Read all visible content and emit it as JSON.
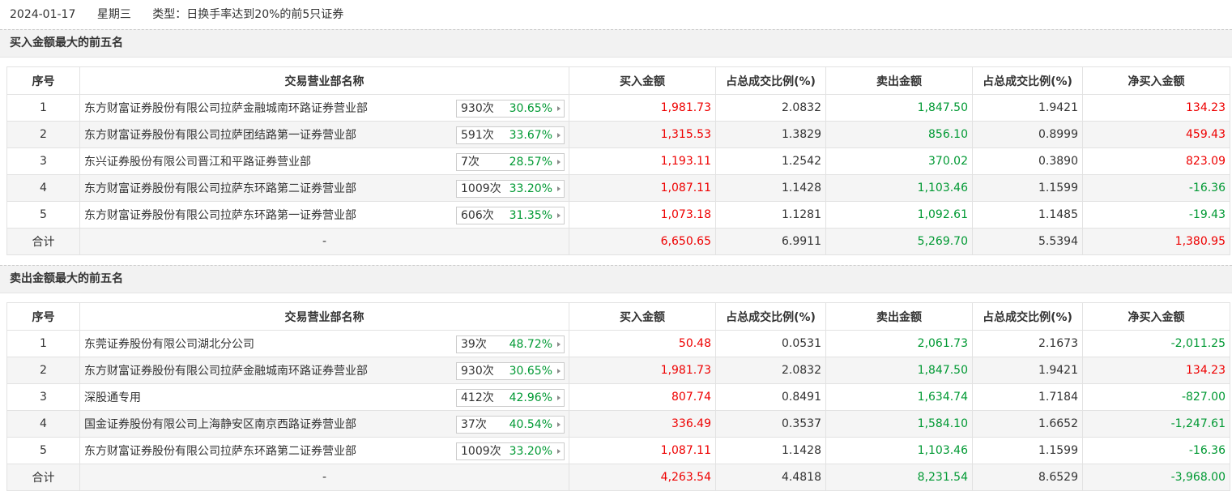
{
  "header": {
    "date": "2024-01-17",
    "weekday": "星期三",
    "type": "类型：日换手率达到20%的前5只证券"
  },
  "sections": [
    {
      "title": "买入金额最大的前五名",
      "columns": [
        "序号",
        "交易营业部名称",
        "买入金额",
        "占总成交比例(%)",
        "卖出金额",
        "占总成交比例(%)",
        "净买入金额"
      ],
      "rows": [
        {
          "rank": "1",
          "name": "东方财富证券股份有限公司拉萨金融城南环路证券营业部",
          "count": "930次",
          "ratio": "30.65%",
          "buy": "1,981.73",
          "buy_pct": "2.0832",
          "sell": "1,847.50",
          "sell_pct": "1.9421",
          "net": "134.23"
        },
        {
          "rank": "2",
          "name": "东方财富证券股份有限公司拉萨团结路第一证券营业部",
          "count": "591次",
          "ratio": "33.67%",
          "buy": "1,315.53",
          "buy_pct": "1.3829",
          "sell": "856.10",
          "sell_pct": "0.8999",
          "net": "459.43"
        },
        {
          "rank": "3",
          "name": "东兴证券股份有限公司晋江和平路证券营业部",
          "count": "7次",
          "ratio": "28.57%",
          "buy": "1,193.11",
          "buy_pct": "1.2542",
          "sell": "370.02",
          "sell_pct": "0.3890",
          "net": "823.09"
        },
        {
          "rank": "4",
          "name": "东方财富证券股份有限公司拉萨东环路第二证券营业部",
          "count": "1009次",
          "ratio": "33.20%",
          "buy": "1,087.11",
          "buy_pct": "1.1428",
          "sell": "1,103.46",
          "sell_pct": "1.1599",
          "net": "-16.36"
        },
        {
          "rank": "5",
          "name": "东方财富证券股份有限公司拉萨东环路第一证券营业部",
          "count": "606次",
          "ratio": "31.35%",
          "buy": "1,073.18",
          "buy_pct": "1.1281",
          "sell": "1,092.61",
          "sell_pct": "1.1485",
          "net": "-19.43"
        }
      ],
      "total": {
        "label": "合计",
        "name": "-",
        "buy": "6,650.65",
        "buy_pct": "6.9911",
        "sell": "5,269.70",
        "sell_pct": "5.5394",
        "net": "1,380.95"
      }
    },
    {
      "title": "卖出金额最大的前五名",
      "columns": [
        "序号",
        "交易营业部名称",
        "买入金额",
        "占总成交比例(%)",
        "卖出金额",
        "占总成交比例(%)",
        "净买入金额"
      ],
      "rows": [
        {
          "rank": "1",
          "name": "东莞证券股份有限公司湖北分公司",
          "count": "39次",
          "ratio": "48.72%",
          "buy": "50.48",
          "buy_pct": "0.0531",
          "sell": "2,061.73",
          "sell_pct": "2.1673",
          "net": "-2,011.25"
        },
        {
          "rank": "2",
          "name": "东方财富证券股份有限公司拉萨金融城南环路证券营业部",
          "count": "930次",
          "ratio": "30.65%",
          "buy": "1,981.73",
          "buy_pct": "2.0832",
          "sell": "1,847.50",
          "sell_pct": "1.9421",
          "net": "134.23"
        },
        {
          "rank": "3",
          "name": "深股通专用",
          "count": "412次",
          "ratio": "42.96%",
          "buy": "807.74",
          "buy_pct": "0.8491",
          "sell": "1,634.74",
          "sell_pct": "1.7184",
          "net": "-827.00"
        },
        {
          "rank": "4",
          "name": "国金证券股份有限公司上海静安区南京西路证券营业部",
          "count": "37次",
          "ratio": "40.54%",
          "buy": "336.49",
          "buy_pct": "0.3537",
          "sell": "1,584.10",
          "sell_pct": "1.6652",
          "net": "-1,247.61"
        },
        {
          "rank": "5",
          "name": "东方财富证券股份有限公司拉萨东环路第二证券营业部",
          "count": "1009次",
          "ratio": "33.20%",
          "buy": "1,087.11",
          "buy_pct": "1.1428",
          "sell": "1,103.46",
          "sell_pct": "1.1599",
          "net": "-16.36"
        }
      ],
      "total": {
        "label": "合计",
        "name": "-",
        "buy": "4,263.54",
        "buy_pct": "4.4818",
        "sell": "8,231.54",
        "sell_pct": "8.6529",
        "net": "-3,968.00"
      }
    }
  ]
}
